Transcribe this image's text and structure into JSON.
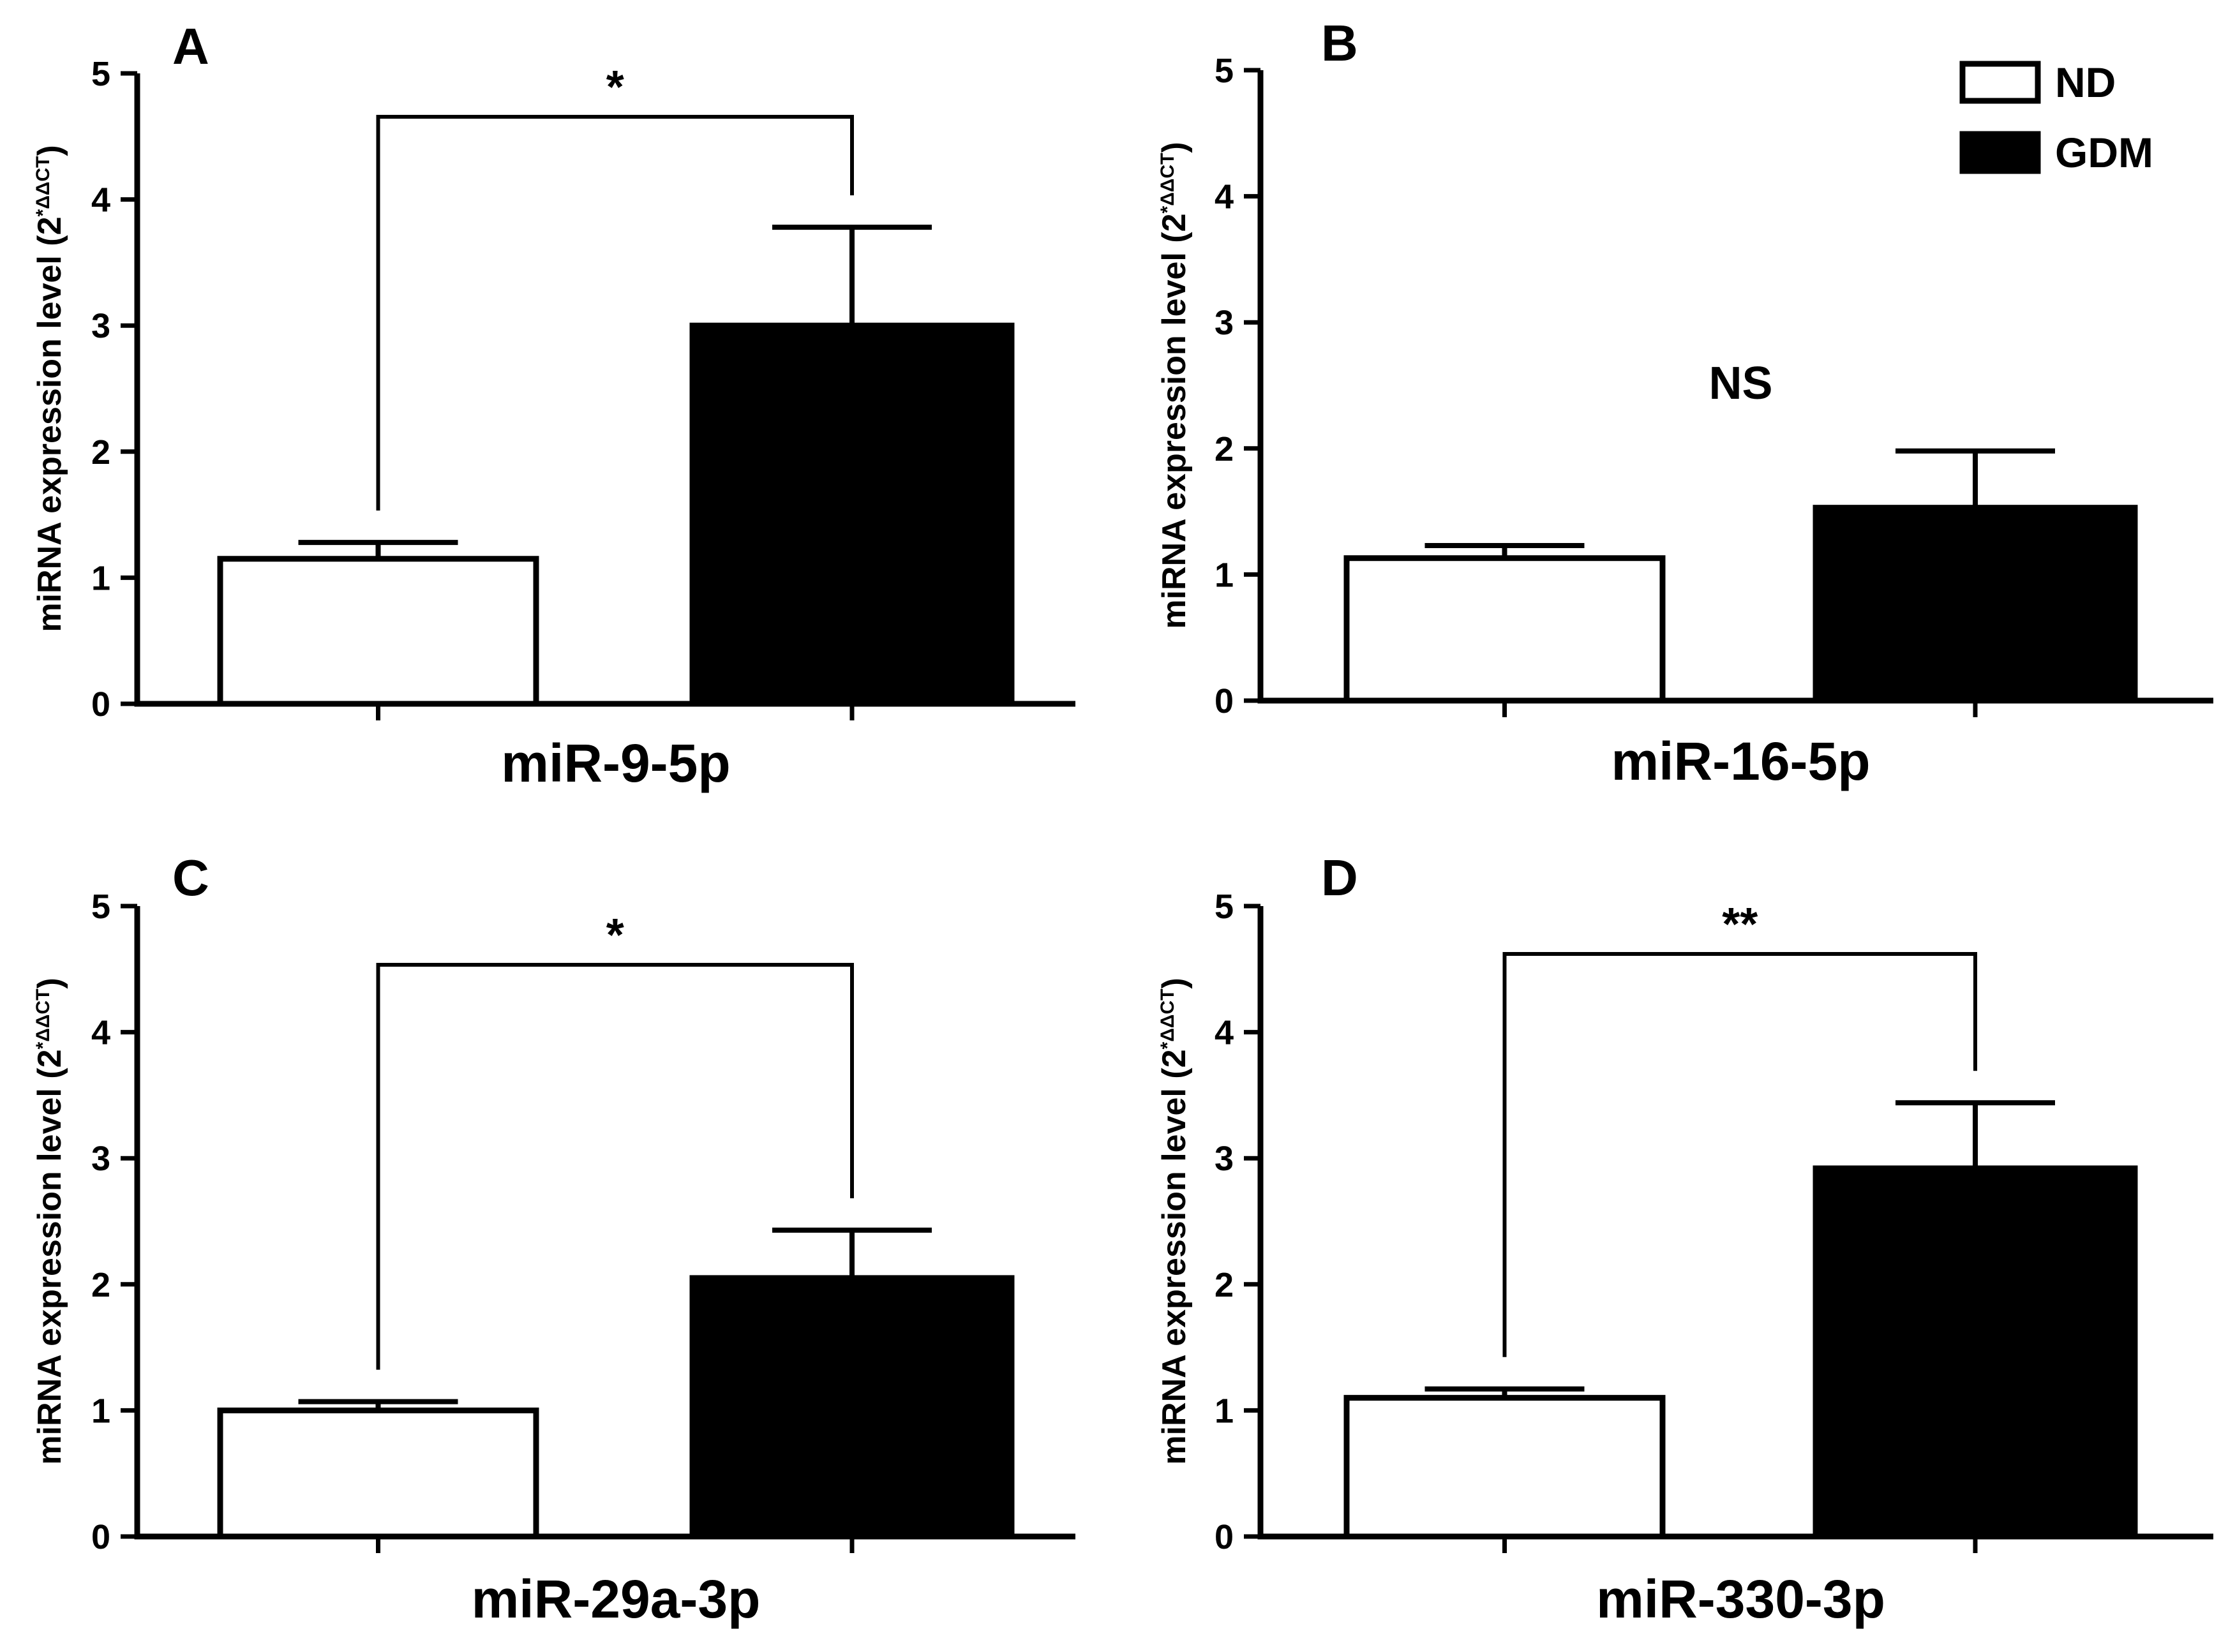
{
  "chart_data": [
    {
      "type": "bar",
      "panel": "A",
      "title": "miR-9-5p",
      "xlabel": "miR-9-5p",
      "ylabel": "miRNA expression level (2*ΔΔCT)",
      "ylabel_main": "miRNA expression level (2",
      "ylabel_sup": "*ΔΔCT",
      "ylabel_end": ")",
      "ylim": [
        0,
        5
      ],
      "yticks": [
        "0",
        "1",
        "2",
        "3",
        "4",
        "5"
      ],
      "categories": [
        "ND",
        "GDM"
      ],
      "values": [
        1.15,
        3.0
      ],
      "errors": [
        0.13,
        0.78
      ],
      "significance": "*",
      "bracket": true
    },
    {
      "type": "bar",
      "panel": "B",
      "title": "miR-16-5p",
      "xlabel": "miR-16-5p",
      "ylabel": "miRNA expression level (2*ΔΔCT)",
      "ylabel_main": "miRNA expression level (2",
      "ylabel_sup": "*ΔΔCT",
      "ylabel_end": ")",
      "ylim": [
        0,
        5
      ],
      "yticks": [
        "0",
        "1",
        "2",
        "3",
        "4",
        "5"
      ],
      "categories": [
        "ND",
        "GDM"
      ],
      "values": [
        1.13,
        1.53
      ],
      "errors": [
        0.1,
        0.45
      ],
      "significance": "NS",
      "bracket": false
    },
    {
      "type": "bar",
      "panel": "C",
      "title": "miR-29a-3p",
      "xlabel": "miR-29a-3p",
      "ylabel": "miRNA expression level (2*ΔΔCT)",
      "ylabel_main": "miRNA expression level (2",
      "ylabel_sup": "*ΔΔCT",
      "ylabel_end": ")",
      "ylim": [
        0,
        5
      ],
      "yticks": [
        "0",
        "1",
        "2",
        "3",
        "4",
        "5"
      ],
      "categories": [
        "ND",
        "GDM"
      ],
      "values": [
        1.0,
        2.05
      ],
      "errors": [
        0.07,
        0.38
      ],
      "significance": "*",
      "bracket": true
    },
    {
      "type": "bar",
      "panel": "D",
      "title": "miR-330-3p",
      "xlabel": "miR-330-3p",
      "ylabel": "miRNA expression level (2*ΔΔCT)",
      "ylabel_main": "miRNA expression level (2",
      "ylabel_sup": "*ΔΔCT",
      "ylabel_end": ")",
      "ylim": [
        0,
        5
      ],
      "yticks": [
        "0",
        "1",
        "2",
        "3",
        "4",
        "5"
      ],
      "categories": [
        "ND",
        "GDM"
      ],
      "values": [
        1.1,
        2.92
      ],
      "errors": [
        0.07,
        0.52
      ],
      "significance": "**",
      "bracket": true
    }
  ],
  "legend": {
    "items": [
      {
        "label": "ND",
        "color": "#ffffff"
      },
      {
        "label": "GDM",
        "color": "#000000"
      }
    ]
  },
  "colors": {
    "bar_edge": "#000000",
    "nd_fill": "#ffffff",
    "gdm_fill": "#000000"
  }
}
